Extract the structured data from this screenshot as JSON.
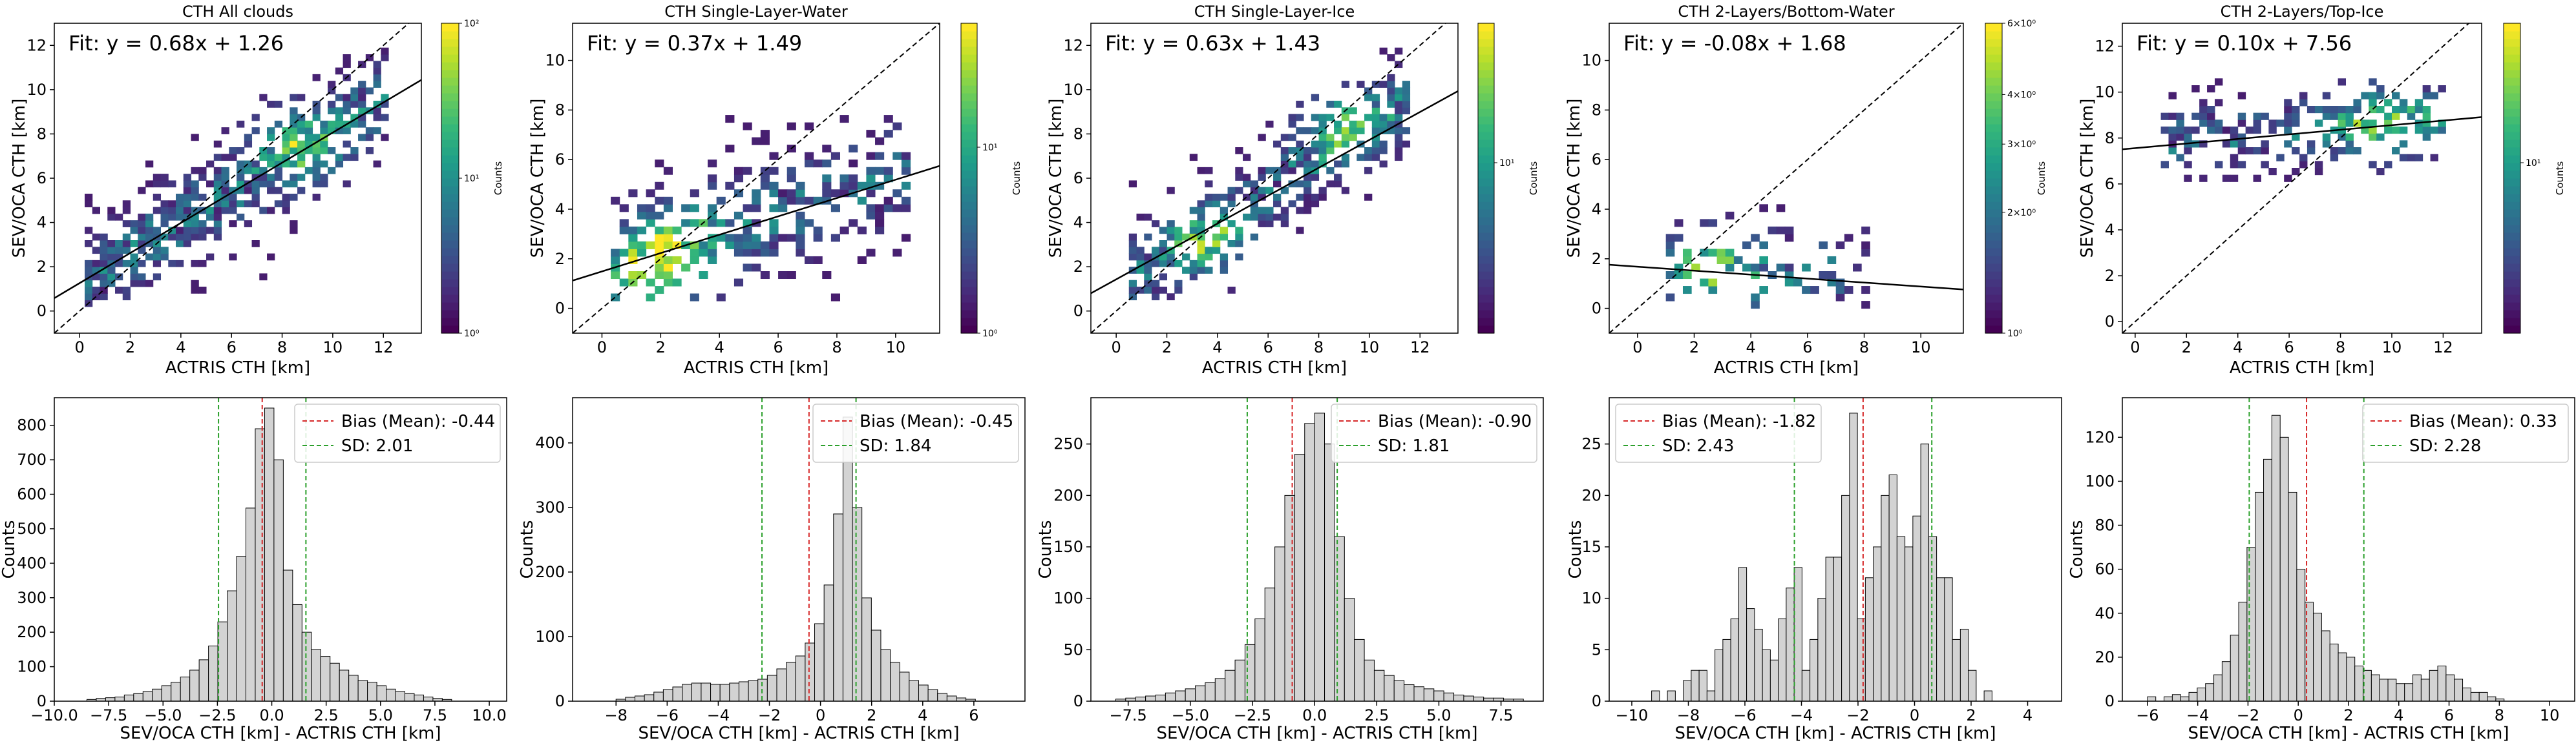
{
  "figure": {
    "background": "#ffffff"
  },
  "chart_data": [
    {
      "type": "heatmap",
      "subtype": "2d-histogram",
      "id": "all",
      "title": "CTH All clouds",
      "xlabel": "ACTRIS CTH [km]",
      "ylabel": "SEV/OCA CTH [km]",
      "xlim": [
        -1,
        13.5
      ],
      "ylim": [
        -1,
        13
      ],
      "xticks": [
        0,
        2,
        4,
        6,
        8,
        10,
        12
      ],
      "yticks": [
        0,
        2,
        4,
        6,
        8,
        10,
        12
      ],
      "fit": {
        "label": "Fit: y = 0.68x + 1.26",
        "slope": 0.68,
        "intercept": 1.26
      },
      "identity_line": true,
      "bin_size": 0.3,
      "density": {
        "x0": 0.2,
        "x1": 12.0,
        "y0": 0.2,
        "y1": 11.8,
        "slope": 0.68,
        "intercept": 1.26,
        "spread": 1.6,
        "occupancy": 0.75,
        "seed": 11,
        "hot": [
          [
            8.5,
            7.4
          ]
        ]
      },
      "colorbar": {
        "label": "Counts",
        "scale": "log",
        "ticks": [
          {
            "label": "10⁰",
            "v": 0
          },
          {
            "label": "10¹",
            "v": 0.5
          },
          {
            "label": "10²",
            "v": 1
          }
        ]
      }
    },
    {
      "type": "heatmap",
      "subtype": "2d-histogram",
      "id": "water",
      "title": "CTH Single-Layer-Water",
      "xlabel": "ACTRIS CTH [km]",
      "ylabel": "SEV/OCA CTH [km]",
      "xlim": [
        -1,
        11.5
      ],
      "ylim": [
        -1,
        11.5
      ],
      "xticks": [
        0,
        2,
        4,
        6,
        8,
        10
      ],
      "yticks": [
        0,
        2,
        4,
        6,
        8,
        10
      ],
      "fit": {
        "label": "Fit: y = 0.37x + 1.49",
        "slope": 0.37,
        "intercept": 1.49
      },
      "identity_line": true,
      "bin_size": 0.3,
      "density": {
        "x0": 0.3,
        "x1": 10.5,
        "y0": 0.3,
        "y1": 7.6,
        "slope": 0.37,
        "intercept": 1.6,
        "spread": 1.6,
        "occupancy": 0.55,
        "seed": 23,
        "hot": [
          [
            1.2,
            1.0
          ],
          [
            2.5,
            2.3
          ]
        ]
      },
      "colorbar": {
        "label": "Counts",
        "scale": "log",
        "ticks": [
          {
            "label": "10⁰",
            "v": 0
          },
          {
            "label": "10¹",
            "v": 0.6
          }
        ]
      }
    },
    {
      "type": "heatmap",
      "subtype": "2d-histogram",
      "id": "ice",
      "title": "CTH Single-Layer-Ice",
      "xlabel": "ACTRIS CTH [km]",
      "ylabel": "SEV/OCA CTH [km]",
      "xlim": [
        -1,
        13.5
      ],
      "ylim": [
        -1,
        13
      ],
      "xticks": [
        0,
        2,
        4,
        6,
        8,
        10,
        12
      ],
      "yticks": [
        0,
        2,
        4,
        6,
        8,
        10,
        12
      ],
      "fit": {
        "label": "Fit: y = 0.63x + 1.43",
        "slope": 0.63,
        "intercept": 1.43
      },
      "identity_line": true,
      "bin_size": 0.3,
      "density": {
        "x0": 0.5,
        "x1": 11.5,
        "y0": 0.5,
        "y1": 11.8,
        "slope": 0.75,
        "intercept": 0.9,
        "spread": 1.4,
        "occupancy": 0.7,
        "seed": 37,
        "hot": [
          [
            8.7,
            8.3
          ],
          [
            3.5,
            3.0
          ]
        ]
      },
      "colorbar": {
        "label": "Counts",
        "scale": "log",
        "ticks": [
          {
            "label": "10¹",
            "v": 0.55
          }
        ]
      }
    },
    {
      "type": "heatmap",
      "subtype": "2d-histogram",
      "id": "bottom-water",
      "title": "CTH 2-Layers/Bottom-Water",
      "xlabel": "ACTRIS CTH [km]",
      "ylabel": "SEV/OCA CTH [km]",
      "xlim": [
        -1,
        11.5
      ],
      "ylim": [
        -1,
        11.5
      ],
      "xticks": [
        0,
        2,
        4,
        6,
        8,
        10
      ],
      "yticks": [
        0,
        2,
        4,
        6,
        8,
        10
      ],
      "fit": {
        "label": "Fit: y = -0.08x + 1.68",
        "slope": -0.08,
        "intercept": 1.68
      },
      "identity_line": true,
      "bin_size": 0.3,
      "density": {
        "x0": 1.0,
        "x1": 8.0,
        "y0": 0.0,
        "y1": 5.0,
        "slope": -0.05,
        "intercept": 1.6,
        "spread": 1.3,
        "occupancy": 0.28,
        "seed": 53,
        "hot": [
          [
            2.5,
            1.2
          ]
        ]
      },
      "colorbar": {
        "label": "Counts",
        "scale": "log",
        "ticks": [
          {
            "label": "10⁰",
            "v": 0
          },
          {
            "label": "2×10⁰",
            "v": 0.39
          },
          {
            "label": "3×10⁰",
            "v": 0.61
          },
          {
            "label": "4×10⁰",
            "v": 0.77
          },
          {
            "label": "6×10⁰",
            "v": 1
          }
        ]
      }
    },
    {
      "type": "heatmap",
      "subtype": "2d-histogram",
      "id": "top-ice",
      "title": "CTH 2-Layers/Top-Ice",
      "xlabel": "ACTRIS CTH [km]",
      "ylabel": "SEV/OCA CTH [km]",
      "xlim": [
        -0.5,
        13.5
      ],
      "ylim": [
        -0.5,
        13
      ],
      "xticks": [
        0,
        2,
        4,
        6,
        8,
        10,
        12
      ],
      "yticks": [
        0,
        2,
        4,
        6,
        8,
        10,
        12
      ],
      "fit": {
        "label": "Fit: y = 0.10x + 7.56",
        "slope": 0.1,
        "intercept": 7.56
      },
      "identity_line": true,
      "bin_size": 0.3,
      "density": {
        "x0": 1.0,
        "x1": 12.0,
        "y0": 5.8,
        "y1": 10.6,
        "slope": 0.1,
        "intercept": 7.6,
        "spread": 1.1,
        "occupancy": 0.6,
        "seed": 71,
        "hot": [
          [
            9.5,
            8.5
          ]
        ]
      },
      "colorbar": {
        "label": "Counts",
        "scale": "log",
        "ticks": [
          {
            "label": "10¹",
            "v": 0.55
          }
        ]
      }
    },
    {
      "type": "bar",
      "subtype": "histogram",
      "id": "hist-all",
      "xlabel": "SEV/OCA CTH [km] - ACTRIS CTH [km]",
      "ylabel": "Counts",
      "xlim": [
        -10,
        10.8
      ],
      "ylim": [
        0,
        880
      ],
      "xticks": [
        {
          "v": -10,
          "label": "−10.0"
        },
        {
          "v": -7.5,
          "label": "−7.5"
        },
        {
          "v": -5,
          "label": "−5.0"
        },
        {
          "v": -2.5,
          "label": "−2.5"
        },
        {
          "v": 0,
          "label": "0.0"
        },
        {
          "v": 2.5,
          "label": "2.5"
        },
        {
          "v": 5,
          "label": "5.0"
        },
        {
          "v": 7.5,
          "label": "7.5"
        },
        {
          "v": 10,
          "label": "10.0"
        }
      ],
      "yticks": [
        0,
        100,
        200,
        300,
        400,
        500,
        600,
        700,
        800
      ],
      "bin_start": -8.5,
      "bin_width": 0.43,
      "values": [
        5,
        8,
        10,
        12,
        18,
        22,
        28,
        35,
        45,
        55,
        70,
        90,
        120,
        160,
        230,
        320,
        420,
        560,
        790,
        850,
        700,
        380,
        280,
        200,
        150,
        130,
        110,
        90,
        75,
        60,
        55,
        45,
        35,
        28,
        22,
        18,
        12,
        8,
        5
      ],
      "bias": {
        "label": "Bias (Mean): -0.44",
        "value": -0.44,
        "color": "#d62728"
      },
      "sd": {
        "label": "SD: 2.01",
        "value": 2.01,
        "color": "#2ca02c"
      },
      "legend_position": "upper right"
    },
    {
      "type": "bar",
      "subtype": "histogram",
      "id": "hist-water",
      "xlabel": "SEV/OCA CTH [km] - ACTRIS CTH [km]",
      "ylabel": "Counts",
      "xlim": [
        -9.7,
        8
      ],
      "ylim": [
        0,
        470
      ],
      "xticks": [
        {
          "v": -8,
          "label": "−8"
        },
        {
          "v": -6,
          "label": "−6"
        },
        {
          "v": -4,
          "label": "−4"
        },
        {
          "v": -2,
          "label": "−2"
        },
        {
          "v": 0,
          "label": "0"
        },
        {
          "v": 2,
          "label": "2"
        },
        {
          "v": 4,
          "label": "4"
        },
        {
          "v": 6,
          "label": "6"
        }
      ],
      "yticks": [
        0,
        100,
        200,
        300,
        400
      ],
      "bin_start": -8.0,
      "bin_width": 0.37,
      "values": [
        3,
        6,
        8,
        10,
        14,
        18,
        22,
        26,
        28,
        28,
        26,
        26,
        28,
        30,
        32,
        34,
        40,
        50,
        60,
        70,
        90,
        120,
        180,
        290,
        440,
        300,
        160,
        110,
        80,
        60,
        45,
        32,
        25,
        18,
        12,
        8,
        5,
        3
      ],
      "bias": {
        "label": "Bias (Mean): -0.45",
        "value": -0.45,
        "color": "#d62728"
      },
      "sd": {
        "label": "SD: 1.84",
        "value": 1.84,
        "color": "#2ca02c"
      },
      "legend_position": "upper right"
    },
    {
      "type": "bar",
      "subtype": "histogram",
      "id": "hist-ice",
      "xlabel": "SEV/OCA CTH [km] - ACTRIS CTH [km]",
      "ylabel": "Counts",
      "xlim": [
        -9,
        9.2
      ],
      "ylim": [
        0,
        295
      ],
      "xticks": [
        {
          "v": -7.5,
          "label": "−7.5"
        },
        {
          "v": -5,
          "label": "−5.0"
        },
        {
          "v": -2.5,
          "label": "−2.5"
        },
        {
          "v": 0,
          "label": "0.0"
        },
        {
          "v": 2.5,
          "label": "2.5"
        },
        {
          "v": 5,
          "label": "5.0"
        },
        {
          "v": 7.5,
          "label": "7.5"
        }
      ],
      "yticks": [
        0,
        50,
        100,
        150,
        200,
        250
      ],
      "bin_start": -8.0,
      "bin_width": 0.4,
      "values": [
        2,
        3,
        4,
        5,
        6,
        8,
        10,
        12,
        15,
        18,
        22,
        30,
        40,
        55,
        80,
        110,
        150,
        200,
        240,
        270,
        280,
        250,
        160,
        100,
        60,
        40,
        30,
        25,
        20,
        16,
        14,
        12,
        10,
        8,
        6,
        5,
        4,
        3,
        3,
        2,
        2
      ],
      "bias": {
        "label": "Bias (Mean): -0.90",
        "value": -0.9,
        "color": "#d62728"
      },
      "sd": {
        "label": "SD: 1.81",
        "value": 1.81,
        "color": "#2ca02c"
      },
      "legend_position": "upper right"
    },
    {
      "type": "bar",
      "subtype": "histogram",
      "id": "hist-bottom-water",
      "xlabel": "SEV/OCA CTH [km] - ACTRIS CTH [km]",
      "ylabel": "Counts",
      "xlim": [
        -10.8,
        5.2
      ],
      "ylim": [
        0,
        29.5
      ],
      "xticks": [
        {
          "v": -10,
          "label": "−10"
        },
        {
          "v": -8,
          "label": "−8"
        },
        {
          "v": -6,
          "label": "−6"
        },
        {
          "v": -4,
          "label": "−4"
        },
        {
          "v": -2,
          "label": "−2"
        },
        {
          "v": 0,
          "label": "0"
        },
        {
          "v": 2,
          "label": "2"
        },
        {
          "v": 4,
          "label": "4"
        }
      ],
      "yticks": [
        0,
        5,
        10,
        15,
        20,
        25
      ],
      "bin_start": -9.3,
      "bin_width": 0.28,
      "values": [
        1,
        0,
        1,
        0,
        2,
        3,
        3,
        1,
        5,
        6,
        8,
        13,
        9,
        7,
        5,
        4,
        8,
        11,
        13,
        3,
        6,
        10,
        14,
        14,
        20,
        28,
        8,
        12,
        15,
        20,
        22,
        16,
        15,
        18,
        25,
        16,
        12,
        12,
        6,
        7,
        3,
        0,
        1
      ],
      "bias": {
        "label": "Bias (Mean): -1.82",
        "value": -1.82,
        "color": "#d62728"
      },
      "sd": {
        "label": "SD: 2.43",
        "value": 2.43,
        "color": "#2ca02c"
      },
      "legend_position": "upper left"
    },
    {
      "type": "bar",
      "subtype": "histogram",
      "id": "hist-top-ice",
      "xlabel": "SEV/OCA CTH [km] - ACTRIS CTH [km]",
      "ylabel": "Counts",
      "xlim": [
        -7,
        11
      ],
      "ylim": [
        0,
        138
      ],
      "xticks": [
        {
          "v": -6,
          "label": "−6"
        },
        {
          "v": -4,
          "label": "−4"
        },
        {
          "v": -2,
          "label": "−2"
        },
        {
          "v": 0,
          "label": "0"
        },
        {
          "v": 2,
          "label": "2"
        },
        {
          "v": 4,
          "label": "4"
        },
        {
          "v": 6,
          "label": "6"
        },
        {
          "v": 8,
          "label": "8"
        },
        {
          "v": 10,
          "label": "10"
        }
      ],
      "yticks": [
        0,
        20,
        40,
        60,
        80,
        100,
        120
      ],
      "bin_start": -6.0,
      "bin_width": 0.33,
      "values": [
        2,
        0,
        2,
        3,
        2,
        4,
        6,
        8,
        12,
        18,
        30,
        45,
        70,
        95,
        110,
        130,
        120,
        95,
        60,
        45,
        40,
        32,
        26,
        22,
        20,
        16,
        14,
        12,
        10,
        10,
        8,
        8,
        12,
        10,
        14,
        16,
        12,
        10,
        6,
        4,
        4,
        2,
        1
      ],
      "bias": {
        "label": "Bias (Mean): 0.33",
        "value": 0.33,
        "color": "#d62728"
      },
      "sd": {
        "label": "SD: 2.28",
        "value": 2.28,
        "color": "#2ca02c"
      },
      "legend_position": "upper right"
    }
  ]
}
